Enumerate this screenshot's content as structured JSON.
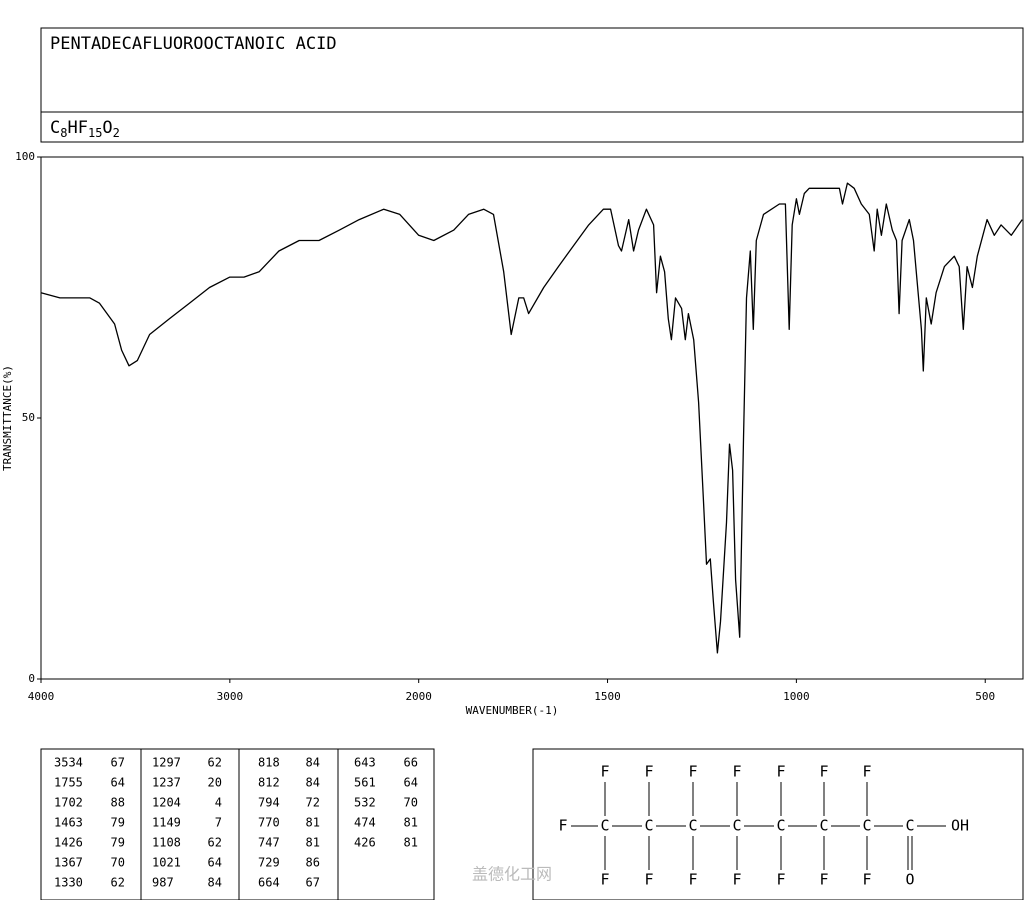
{
  "chart_data": {
    "type": "line",
    "title": "PENTADECAFLUOROOCTANOIC ACID",
    "formula": "C8HF15O2",
    "xlabel": "WAVENUMBER(-1)",
    "ylabel": "TRANSMITTANCE(%)",
    "xlim": [
      4000,
      400
    ],
    "xbreak": 2000,
    "xbreak_ratio": 2,
    "xticks": [
      4000,
      3000,
      2000,
      1500,
      1000,
      500
    ],
    "ylim": [
      0,
      100
    ],
    "yticks": [
      0,
      50,
      100
    ],
    "color": "#000000",
    "x": [
      4000,
      3900,
      3741,
      3690,
      3610,
      3573,
      3534,
      3490,
      3425,
      3320,
      3214,
      3108,
      3000,
      2925,
      2845,
      2740,
      2633,
      2528,
      2420,
      2315,
      2185,
      2100,
      2000,
      1960,
      1907,
      1868,
      1828,
      1802,
      1775,
      1755,
      1735,
      1722,
      1709,
      1669,
      1630,
      1590,
      1550,
      1511,
      1492,
      1471,
      1463,
      1444,
      1431,
      1418,
      1397,
      1378,
      1370,
      1360,
      1349,
      1339,
      1331,
      1320,
      1304,
      1294,
      1286,
      1272,
      1259,
      1246,
      1238,
      1228,
      1220,
      1209,
      1201,
      1185,
      1177,
      1169,
      1161,
      1150,
      1140,
      1132,
      1122,
      1114,
      1106,
      1087,
      1045,
      1029,
      1019,
      1011,
      1000,
      992,
      979,
      966,
      886,
      878,
      865,
      847,
      828,
      807,
      794,
      786,
      775,
      762,
      746,
      735,
      728,
      720,
      701,
      690,
      680,
      669,
      664,
      656,
      643,
      630,
      608,
      582,
      569,
      558,
      548,
      534,
      521,
      495,
      476,
      458,
      431,
      402
    ],
    "values": [
      74,
      73,
      73,
      72,
      68,
      63,
      60,
      61,
      66,
      69,
      72,
      75,
      77,
      77,
      78,
      82,
      84,
      84,
      86,
      88,
      90,
      89,
      85,
      84,
      86,
      89,
      90,
      89,
      78,
      66,
      73,
      73,
      70,
      75,
      79,
      83,
      87,
      90,
      90,
      83,
      82,
      88,
      82,
      86,
      90,
      87,
      74,
      81,
      78,
      69,
      65,
      73,
      71,
      65,
      70,
      65,
      53,
      34,
      22,
      23,
      15,
      5,
      11,
      30,
      45,
      40,
      19,
      8,
      46,
      73,
      82,
      67,
      84,
      89,
      91,
      91,
      67,
      87,
      92,
      89,
      93,
      94,
      94,
      91,
      95,
      94,
      91,
      89,
      82,
      90,
      85,
      91,
      86,
      84,
      70,
      84,
      88,
      84,
      76,
      67,
      59,
      73,
      68,
      74,
      79,
      81,
      79,
      67,
      79,
      75,
      81,
      88,
      85,
      87,
      85,
      88
    ]
  },
  "table": {
    "columns": [
      [
        [
          3534,
          67
        ],
        [
          1755,
          64
        ],
        [
          1702,
          88
        ],
        [
          1463,
          79
        ],
        [
          1426,
          79
        ],
        [
          1367,
          70
        ],
        [
          1330,
          62
        ]
      ],
      [
        [
          1297,
          62
        ],
        [
          1237,
          20
        ],
        [
          1204,
          4
        ],
        [
          1149,
          7
        ],
        [
          1108,
          62
        ],
        [
          1021,
          64
        ],
        [
          987,
          84
        ]
      ],
      [
        [
          818,
          84
        ],
        [
          812,
          84
        ],
        [
          794,
          72
        ],
        [
          770,
          81
        ],
        [
          747,
          81
        ],
        [
          729,
          86
        ],
        [
          664,
          67
        ]
      ],
      [
        [
          643,
          66
        ],
        [
          561,
          64
        ],
        [
          532,
          70
        ],
        [
          474,
          81
        ],
        [
          426,
          81
        ]
      ]
    ]
  },
  "structure": {
    "top": [
      "F",
      "F",
      "F",
      "F",
      "F",
      "F",
      "F"
    ],
    "chain": [
      "F",
      "C",
      "C",
      "C",
      "C",
      "C",
      "C",
      "C",
      "C",
      "OH"
    ],
    "bottom": [
      "F",
      "F",
      "F",
      "F",
      "F",
      "F",
      "F",
      "O"
    ]
  },
  "watermark": "盖德化工网"
}
